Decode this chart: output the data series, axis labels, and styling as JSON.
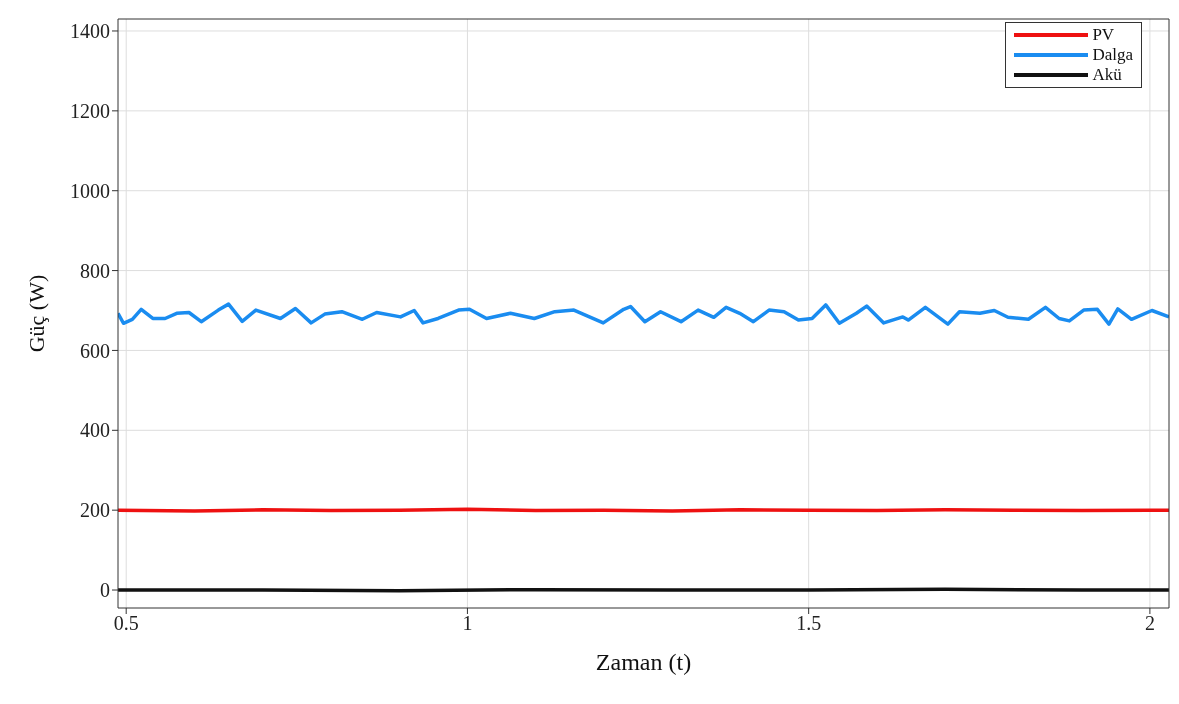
{
  "chart_data": {
    "type": "line",
    "xlabel": "Zaman (t)",
    "ylabel": "Güç (W)",
    "xlim": [
      0.488,
      2.028
    ],
    "ylim": [
      -45,
      1430
    ],
    "xticks": [
      0.5,
      1,
      1.5,
      2
    ],
    "yticks": [
      0,
      200,
      400,
      600,
      800,
      1000,
      1200,
      1400
    ],
    "grid": true,
    "legend": "top right",
    "marker": "none",
    "line_style": "solid",
    "series": [
      {
        "name": "PV",
        "color": "#ee1111",
        "x": [
          0.488,
          0.6,
          0.7,
          0.8,
          0.9,
          1.0,
          1.1,
          1.2,
          1.3,
          1.4,
          1.5,
          1.6,
          1.7,
          1.8,
          1.9,
          2.0,
          2.028
        ],
        "values": [
          200,
          198,
          201,
          199,
          200,
          202,
          199,
          200,
          198,
          201,
          200,
          199,
          201,
          200,
          199,
          200,
          200
        ]
      },
      {
        "name": "Dalga",
        "color": "#1a8cf0",
        "x": [
          0.488,
          0.496,
          0.509,
          0.522,
          0.539,
          0.557,
          0.574,
          0.592,
          0.61,
          0.635,
          0.65,
          0.67,
          0.69,
          0.726,
          0.748,
          0.771,
          0.791,
          0.816,
          0.846,
          0.867,
          0.902,
          0.922,
          0.935,
          0.957,
          0.987,
          1.003,
          1.028,
          1.063,
          1.098,
          1.128,
          1.156,
          1.199,
          1.229,
          1.239,
          1.26,
          1.283,
          1.313,
          1.338,
          1.361,
          1.379,
          1.399,
          1.419,
          1.442,
          1.464,
          1.485,
          1.505,
          1.525,
          1.545,
          1.57,
          1.585,
          1.61,
          1.638,
          1.646,
          1.671,
          1.704,
          1.721,
          1.751,
          1.772,
          1.792,
          1.822,
          1.847,
          1.867,
          1.882,
          1.903,
          1.923,
          1.94,
          1.953,
          1.973,
          2.003,
          2.028
        ],
        "values": [
          693,
          668,
          678,
          703,
          680,
          680,
          693,
          695,
          672,
          701,
          716,
          673,
          701,
          680,
          705,
          669,
          691,
          697,
          678,
          695,
          684,
          700,
          669,
          680,
          701,
          703,
          680,
          693,
          680,
          697,
          701,
          669,
          703,
          710,
          672,
          697,
          672,
          701,
          683,
          708,
          693,
          672,
          701,
          697,
          676,
          680,
          714,
          668,
          693,
          711,
          669,
          684,
          676,
          708,
          666,
          697,
          693,
          700,
          683,
          678,
          708,
          680,
          674,
          701,
          703,
          666,
          704,
          678,
          700,
          684
        ]
      },
      {
        "name": "Akü",
        "color": "#111111",
        "x": [
          0.488,
          0.7,
          0.9,
          1.1,
          1.3,
          1.5,
          1.7,
          1.9,
          2.028
        ],
        "values": [
          0,
          0,
          -2,
          1,
          0,
          0,
          2,
          0,
          0
        ]
      }
    ]
  }
}
